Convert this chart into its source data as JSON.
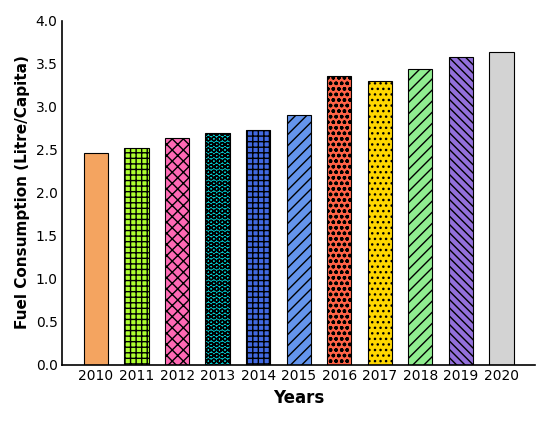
{
  "years": [
    "2010",
    "2011",
    "2012",
    "2013",
    "2014",
    "2015",
    "2016",
    "2017",
    "2018",
    "2019",
    "2020"
  ],
  "values": [
    2.46,
    2.52,
    2.63,
    2.69,
    2.73,
    2.9,
    3.36,
    3.3,
    3.44,
    3.57,
    3.63
  ],
  "bar_facecolors": [
    "#F4A460",
    "#ADFF2F",
    "#FF69B4",
    "#00CED1",
    "#4169E1",
    "#6495ED",
    "#FF6347",
    "#FFD700",
    "#90EE90",
    "#9370DB",
    "#D3D3D3"
  ],
  "bar_edgecolors": [
    "#000000",
    "#000000",
    "#000000",
    "#000000",
    "#000000",
    "#000000",
    "#000000",
    "#000000",
    "#000000",
    "#000000",
    "#000000"
  ],
  "hatch_patterns": [
    "",
    "++",
    "xx",
    "OO",
    "++",
    "//",
    "oo",
    "..",
    "//",
    "\\\\\\\\",
    "~~~"
  ],
  "xlabel": "Years",
  "ylabel": "Fuel Consumption (Litre/Capita)",
  "ylim": [
    0,
    4
  ],
  "yticks": [
    0,
    0.5,
    1.0,
    1.5,
    2.0,
    2.5,
    3.0,
    3.5,
    4.0
  ],
  "title": "",
  "bar_width": 0.6,
  "figsize": [
    5.5,
    4.22
  ],
  "dpi": 100
}
